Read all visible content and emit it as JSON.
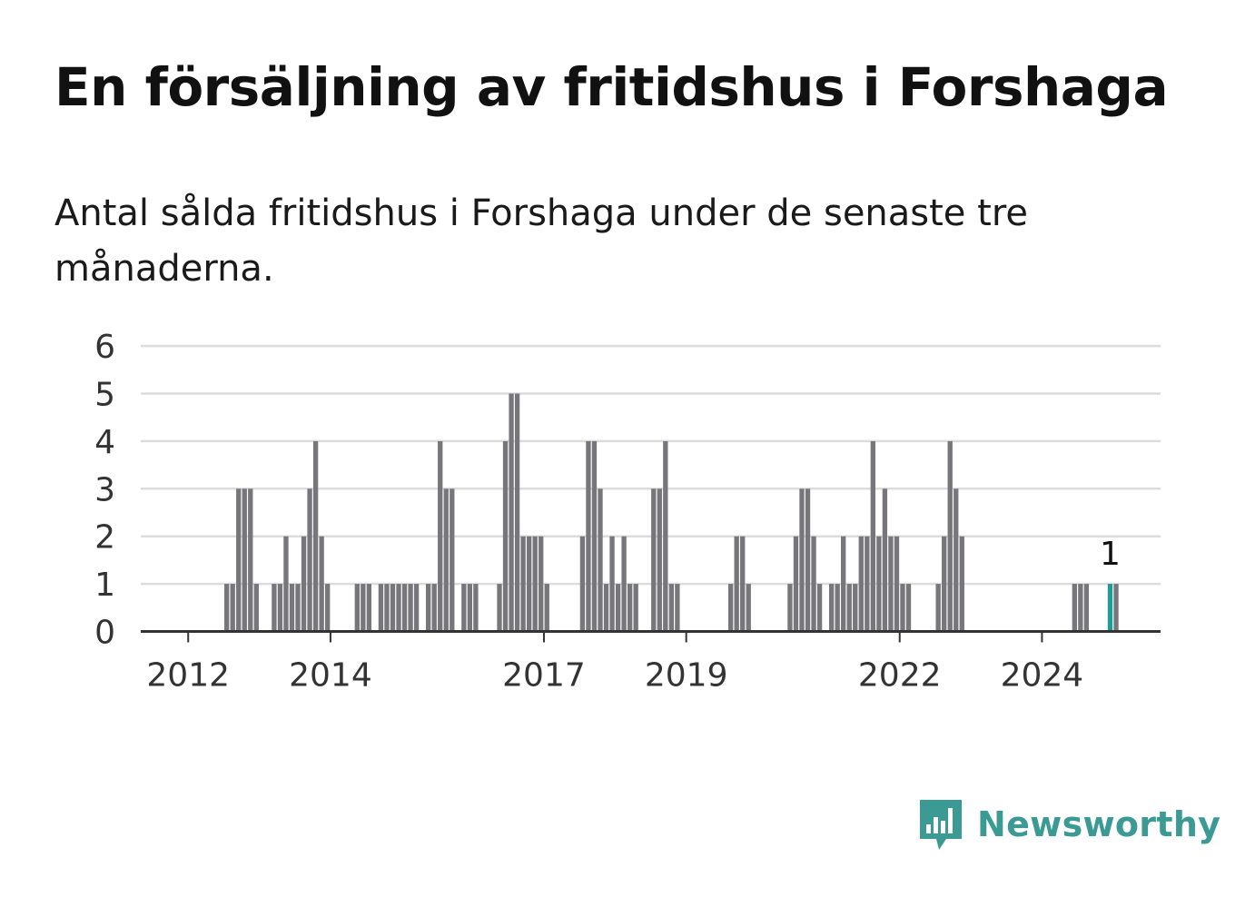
{
  "title": "En försäljning av fritidshus i Forshaga",
  "subtitle": "Antal sålda fritidshus i Forshaga under de senaste tre månaderna.",
  "brand": {
    "name": "Newsworthy",
    "color": "#3b9a94",
    "icon": "newsworthy-logo-icon"
  },
  "colors": {
    "bar": "#77777b",
    "highlight": "#1e9c95",
    "grid": "#dcdcdc",
    "axis": "#333333"
  },
  "chart_data": {
    "type": "bar",
    "xlabel": "",
    "ylabel": "",
    "ylim": [
      0,
      6
    ],
    "yticks": [
      0,
      1,
      2,
      3,
      4,
      5,
      6
    ],
    "x_range": [
      "2011-05",
      "2025-09"
    ],
    "xticks": [
      {
        "label": "2012",
        "date": "2012-01"
      },
      {
        "label": "2014",
        "date": "2014-01"
      },
      {
        "label": "2017",
        "date": "2017-01"
      },
      {
        "label": "2019",
        "date": "2019-01"
      },
      {
        "label": "2022",
        "date": "2022-01"
      },
      {
        "label": "2024",
        "date": "2024-01"
      }
    ],
    "grid": true,
    "annotation": {
      "date": "2024-12",
      "text": "1"
    },
    "highlight_date": "2024-12",
    "series": [
      {
        "start": "2011-05",
        "values": [
          0,
          0,
          0,
          0,
          0,
          0,
          0,
          0,
          0,
          0,
          0,
          0,
          0,
          0,
          1,
          1,
          3,
          3,
          3,
          1,
          0,
          0,
          1,
          1,
          2,
          1,
          1,
          2,
          3,
          4,
          2,
          1,
          0,
          0,
          0,
          0,
          1,
          1,
          1,
          0,
          1,
          1,
          1,
          1,
          1,
          1,
          1,
          0,
          1,
          1,
          4,
          3,
          3,
          0,
          1,
          1,
          1,
          0,
          0,
          0,
          1,
          4,
          5,
          5,
          2,
          2,
          2,
          2,
          1,
          0,
          0,
          0,
          0,
          0,
          2,
          4,
          4,
          3,
          1,
          2,
          1,
          2,
          1,
          1,
          0,
          0,
          3,
          3,
          4,
          1,
          1,
          0,
          0,
          0,
          0,
          0,
          0,
          0,
          0,
          1,
          2,
          2,
          1,
          0,
          0,
          0,
          0,
          0,
          0,
          1,
          2,
          3,
          3,
          2,
          1,
          0,
          1,
          1,
          2,
          1,
          1,
          2,
          2,
          4,
          2,
          3,
          2,
          2,
          1,
          1,
          0,
          0,
          0,
          0,
          1,
          2,
          4,
          3,
          2,
          0,
          0,
          0,
          0,
          0,
          0,
          0,
          0,
          0,
          0,
          0,
          0,
          0,
          0,
          0,
          0,
          0,
          0,
          1,
          1,
          1,
          0,
          0,
          0,
          1,
          1
        ]
      }
    ]
  }
}
